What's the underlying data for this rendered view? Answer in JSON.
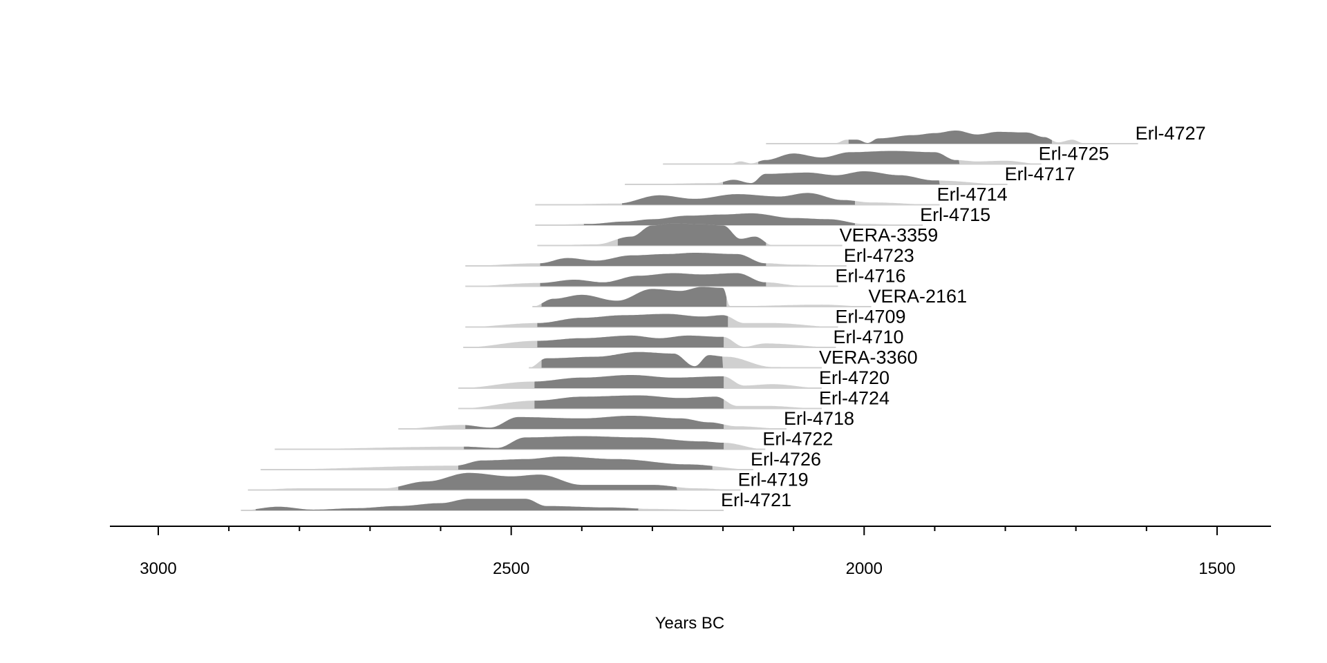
{
  "chart_data": {
    "type": "area",
    "title": "",
    "xlabel": "Years BC",
    "ylabel": "",
    "xlim": [
      3070,
      1420
    ],
    "x_reversed": true,
    "xticks": [
      3000,
      2500,
      2000,
      1500
    ],
    "xtick_labels": [
      "3000",
      "2500",
      "2000",
      "1500"
    ],
    "minor_tick_step": 100,
    "grid": false,
    "colors": {
      "hpd": "#808080",
      "range": "#d0d0d0",
      "axis": "#000000"
    },
    "series": [
      {
        "name": "Erl-4727",
        "hpd": [
          2022,
          1734
        ],
        "scale": 1.0,
        "density": [
          [
            2139,
            0
          ],
          [
            2040,
            0.05
          ],
          [
            2025,
            0.3
          ],
          [
            2010,
            0.3
          ],
          [
            1995,
            0.05
          ],
          [
            1980,
            0.4
          ],
          [
            1930,
            0.65
          ],
          [
            1900,
            0.8
          ],
          [
            1870,
            1
          ],
          [
            1840,
            0.7
          ],
          [
            1810,
            0.9
          ],
          [
            1770,
            0.85
          ],
          [
            1745,
            0.5
          ],
          [
            1725,
            0.1
          ],
          [
            1705,
            0.3
          ],
          [
            1690,
            0.05
          ],
          [
            1612,
            0
          ]
        ]
      },
      {
        "name": "Erl-4725",
        "hpd": [
          2150,
          1865
        ],
        "scale": 1.0,
        "density": [
          [
            2285,
            0
          ],
          [
            2190,
            0.02
          ],
          [
            2175,
            0.2
          ],
          [
            2160,
            0.05
          ],
          [
            2140,
            0.3
          ],
          [
            2100,
            0.8
          ],
          [
            2060,
            0.5
          ],
          [
            2020,
            0.9
          ],
          [
            1960,
            1
          ],
          [
            1900,
            0.9
          ],
          [
            1870,
            0.3
          ],
          [
            1840,
            0.2
          ],
          [
            1800,
            0.25
          ],
          [
            1749,
            0
          ]
        ]
      },
      {
        "name": "Erl-4717",
        "hpd": [
          2200,
          1893
        ],
        "scale": 1.0,
        "density": [
          [
            2339,
            0
          ],
          [
            2210,
            0.1
          ],
          [
            2185,
            0.35
          ],
          [
            2160,
            0.1
          ],
          [
            2140,
            0.8
          ],
          [
            2080,
            0.9
          ],
          [
            2040,
            0.7
          ],
          [
            2000,
            1
          ],
          [
            1950,
            0.7
          ],
          [
            1900,
            0.3
          ],
          [
            1797,
            0
          ]
        ]
      },
      {
        "name": "Erl-4714",
        "hpd": [
          2343,
          2013
        ],
        "scale": 0.9,
        "density": [
          [
            2466,
            0
          ],
          [
            2350,
            0.1
          ],
          [
            2290,
            0.8
          ],
          [
            2240,
            0.5
          ],
          [
            2180,
            0.9
          ],
          [
            2120,
            0.7
          ],
          [
            2080,
            1
          ],
          [
            2030,
            0.4
          ],
          [
            1990,
            0.2
          ],
          [
            1893,
            0
          ]
        ]
      },
      {
        "name": "Erl-4715",
        "hpd": [
          2397,
          2013
        ],
        "scale": 0.9,
        "density": [
          [
            2466,
            0
          ],
          [
            2390,
            0.1
          ],
          [
            2340,
            0.3
          ],
          [
            2300,
            0.5
          ],
          [
            2250,
            0.8
          ],
          [
            2200,
            0.9
          ],
          [
            2160,
            1
          ],
          [
            2100,
            0.6
          ],
          [
            2050,
            0.5
          ],
          [
            2000,
            0.1
          ],
          [
            1917,
            0
          ]
        ]
      },
      {
        "name": "VERA-3359",
        "hpd": [
          2349,
          2139
        ],
        "scale": 1.7,
        "density": [
          [
            2463,
            0
          ],
          [
            2380,
            0.05
          ],
          [
            2330,
            0.4
          ],
          [
            2300,
            0.9
          ],
          [
            2270,
            1
          ],
          [
            2230,
            0.95
          ],
          [
            2200,
            0.9
          ],
          [
            2175,
            0.3
          ],
          [
            2155,
            0.4
          ],
          [
            2130,
            0.02
          ],
          [
            2031,
            0
          ]
        ]
      },
      {
        "name": "Erl-4723",
        "hpd": [
          2459,
          2139
        ],
        "scale": 1.0,
        "density": [
          [
            2565,
            0
          ],
          [
            2460,
            0.2
          ],
          [
            2420,
            0.6
          ],
          [
            2380,
            0.4
          ],
          [
            2330,
            0.8
          ],
          [
            2280,
            0.9
          ],
          [
            2240,
            1
          ],
          [
            2180,
            0.9
          ],
          [
            2140,
            0.2
          ],
          [
            2100,
            0.1
          ],
          [
            2025,
            0
          ]
        ]
      },
      {
        "name": "Erl-4716",
        "hpd": [
          2459,
          2139
        ],
        "scale": 1.0,
        "density": [
          [
            2565,
            0
          ],
          [
            2460,
            0.25
          ],
          [
            2410,
            0.5
          ],
          [
            2370,
            0.3
          ],
          [
            2320,
            0.8
          ],
          [
            2270,
            1
          ],
          [
            2230,
            0.9
          ],
          [
            2180,
            1
          ],
          [
            2140,
            0.3
          ],
          [
            2090,
            0.05
          ],
          [
            2037,
            0
          ]
        ]
      },
      {
        "name": "VERA-2161",
        "hpd": [
          2457,
          2195
        ],
        "scale": 1.5,
        "density": [
          [
            2470,
            0
          ],
          [
            2440,
            0.4
          ],
          [
            2400,
            0.6
          ],
          [
            2350,
            0.3
          ],
          [
            2300,
            0.9
          ],
          [
            2260,
            0.8
          ],
          [
            2230,
            1
          ],
          [
            2200,
            0.95
          ],
          [
            2190,
            0.02
          ],
          [
            2060,
            0.1
          ],
          [
            1990,
            0
          ]
        ]
      },
      {
        "name": "Erl-4709",
        "hpd": [
          2463,
          2193
        ],
        "scale": 1.0,
        "density": [
          [
            2565,
            0
          ],
          [
            2463,
            0.3
          ],
          [
            2400,
            0.7
          ],
          [
            2340,
            0.9
          ],
          [
            2280,
            1
          ],
          [
            2230,
            0.8
          ],
          [
            2200,
            0.9
          ],
          [
            2170,
            0.3
          ],
          [
            2130,
            0.3
          ],
          [
            2037,
            0
          ]
        ]
      },
      {
        "name": "Erl-4710",
        "hpd": [
          2463,
          2199
        ],
        "scale": 1.0,
        "density": [
          [
            2568,
            0
          ],
          [
            2463,
            0.5
          ],
          [
            2400,
            0.7
          ],
          [
            2330,
            0.9
          ],
          [
            2290,
            0.7
          ],
          [
            2250,
            0.9
          ],
          [
            2200,
            0.8
          ],
          [
            2170,
            0.05
          ],
          [
            2140,
            0.3
          ],
          [
            2040,
            0
          ]
        ]
      },
      {
        "name": "VERA-3360",
        "hpd": [
          2457,
          2200
        ],
        "scale": 1.2,
        "density": [
          [
            2475,
            0
          ],
          [
            2450,
            0.6
          ],
          [
            2380,
            0.7
          ],
          [
            2320,
            1
          ],
          [
            2270,
            0.9
          ],
          [
            2240,
            0.1
          ],
          [
            2220,
            0.8
          ],
          [
            2195,
            0.7
          ],
          [
            2130,
            0.05
          ],
          [
            2060,
            0
          ]
        ]
      },
      {
        "name": "Erl-4720",
        "hpd": [
          2467,
          2199
        ],
        "scale": 1.0,
        "density": [
          [
            2575,
            0
          ],
          [
            2470,
            0.5
          ],
          [
            2400,
            0.8
          ],
          [
            2330,
            1
          ],
          [
            2270,
            0.8
          ],
          [
            2200,
            0.9
          ],
          [
            2170,
            0.2
          ],
          [
            2130,
            0.3
          ],
          [
            2060,
            0
          ]
        ]
      },
      {
        "name": "Erl-4724",
        "hpd": [
          2467,
          2199
        ],
        "scale": 1.0,
        "density": [
          [
            2575,
            0
          ],
          [
            2465,
            0.6
          ],
          [
            2400,
            0.9
          ],
          [
            2320,
            1
          ],
          [
            2260,
            0.8
          ],
          [
            2210,
            0.9
          ],
          [
            2180,
            0.2
          ],
          [
            2140,
            0.2
          ],
          [
            2060,
            0
          ]
        ]
      },
      {
        "name": "Erl-4718",
        "hpd": [
          2565,
          2199
        ],
        "scale": 1.0,
        "density": [
          [
            2660,
            0
          ],
          [
            2570,
            0.3
          ],
          [
            2530,
            0.1
          ],
          [
            2490,
            0.9
          ],
          [
            2400,
            0.8
          ],
          [
            2330,
            1
          ],
          [
            2260,
            0.8
          ],
          [
            2220,
            0.5
          ],
          [
            2180,
            0.2
          ],
          [
            2110,
            0
          ]
        ]
      },
      {
        "name": "Erl-4722",
        "hpd": [
          2567,
          2199
        ],
        "scale": 1.0,
        "density": [
          [
            2835,
            0
          ],
          [
            2570,
            0.2
          ],
          [
            2520,
            0.1
          ],
          [
            2480,
            0.9
          ],
          [
            2400,
            1
          ],
          [
            2320,
            0.9
          ],
          [
            2230,
            0.6
          ],
          [
            2200,
            0.5
          ],
          [
            2140,
            0
          ]
        ]
      },
      {
        "name": "Erl-4726",
        "hpd": [
          2575,
          2215
        ],
        "scale": 1.0,
        "density": [
          [
            2855,
            0
          ],
          [
            2580,
            0.3
          ],
          [
            2540,
            0.7
          ],
          [
            2480,
            0.8
          ],
          [
            2430,
            1
          ],
          [
            2350,
            0.8
          ],
          [
            2250,
            0.4
          ],
          [
            2157,
            0
          ]
        ]
      },
      {
        "name": "Erl-4719",
        "hpd": [
          2660,
          2265
        ],
        "scale": 1.3,
        "density": [
          [
            2873,
            0
          ],
          [
            2800,
            0.1
          ],
          [
            2680,
            0.1
          ],
          [
            2620,
            0.5
          ],
          [
            2560,
            1
          ],
          [
            2500,
            0.8
          ],
          [
            2460,
            0.9
          ],
          [
            2400,
            0.3
          ],
          [
            2300,
            0.3
          ],
          [
            2240,
            0.1
          ],
          [
            2175,
            0
          ]
        ]
      },
      {
        "name": "Erl-4721",
        "hpd": [
          2862,
          2320
        ],
        "scale": 1.1,
        "density": [
          [
            2883,
            0
          ],
          [
            2830,
            0.25
          ],
          [
            2780,
            0.05
          ],
          [
            2720,
            0.15
          ],
          [
            2660,
            0.3
          ],
          [
            2600,
            0.5
          ],
          [
            2560,
            0.8
          ],
          [
            2480,
            0.8
          ],
          [
            2450,
            0.3
          ],
          [
            2360,
            0.2
          ],
          [
            2300,
            0.1
          ],
          [
            2199,
            0
          ]
        ]
      }
    ]
  }
}
